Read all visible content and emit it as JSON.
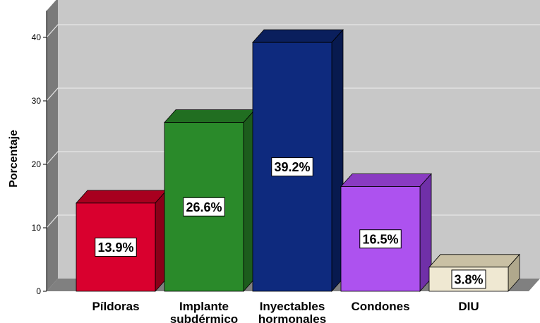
{
  "chart_data": {
    "type": "bar",
    "ylabel": "Porcentaje",
    "xlabel": "",
    "ylim": [
      0,
      40
    ],
    "y_ticks": [
      "0",
      "10",
      "20",
      "30",
      "40"
    ],
    "grid": true,
    "style": "3d",
    "categories": [
      [
        "Píldoras"
      ],
      [
        "Implante",
        "subdérmico"
      ],
      [
        "Inyectables",
        "hormonales"
      ],
      [
        "Condones"
      ],
      [
        "DIU"
      ]
    ],
    "values": [
      13.9,
      26.6,
      39.2,
      16.5,
      3.8
    ],
    "data_labels": [
      "13.9%",
      "26.6%",
      "39.2%",
      "16.5%",
      "3.8%"
    ],
    "colors": {
      "front": [
        "#d9002e",
        "#2a8a2a",
        "#0e2a7e",
        "#ad52ef",
        "#efe8d2"
      ],
      "top": [
        "#a8001f",
        "#216e21",
        "#0a1f5d",
        "#8a3bc2",
        "#c9c0a4"
      ],
      "side": [
        "#8a0018",
        "#1c5c1c",
        "#081a4f",
        "#7030a8",
        "#b0a88c"
      ],
      "wall": "#c8c8c8",
      "wall_side": "#7a7a7a",
      "floor": "#808080",
      "grid": "#e6e6e6"
    }
  }
}
